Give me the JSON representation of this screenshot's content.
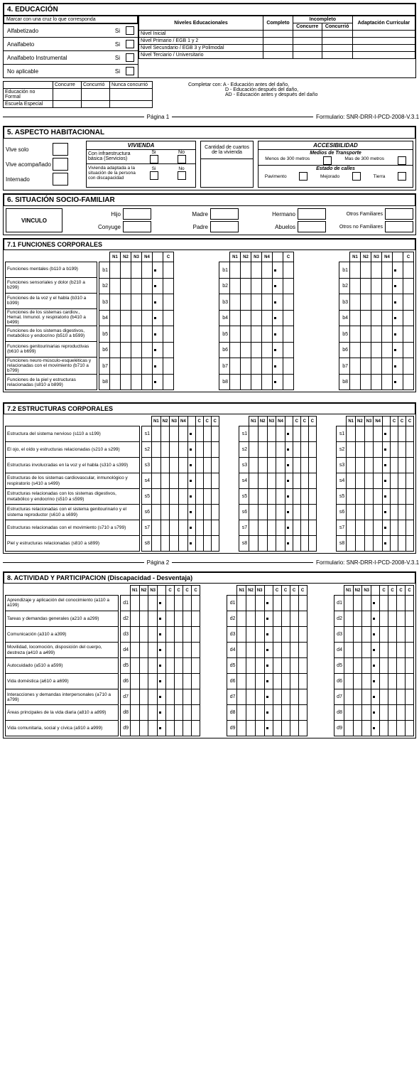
{
  "section4": {
    "title": "4. EDUCACIÓN",
    "marcar": "Marcar con una cruz lo que corresponda",
    "literacy": [
      {
        "label": "Alfabetizado",
        "opt": "Si"
      },
      {
        "label": "Analfabeto",
        "opt": "Si"
      },
      {
        "label": "Analfabeto Instrumental",
        "opt": "Si"
      },
      {
        "label": "No aplicable",
        "opt": "Si"
      }
    ],
    "niveles_title": "Niveles Educacionales",
    "completo": "Completo",
    "incompleto": "Incompleto",
    "concurre": "Concurre",
    "concurrio": "Concurrió",
    "adaptacion": "Adaptación Curricular",
    "niveles": [
      "Nivel Inicial",
      "Nivel Primario / EGB 1 y 2",
      "Nivel Secundario / EGB 3 y Polimodal",
      "Nivel Terciario / Universitario"
    ],
    "extra_rows": [
      "Educación no Formal",
      "Escuela Especial"
    ],
    "nunca": "Nunca concurrió",
    "completar": "Completar con: A - Educación antes del daño,",
    "completar2": "D - Educación después del daño,",
    "completar3": "AD - Educación  antes y después del daño"
  },
  "page1": {
    "pagina": "Página 1",
    "form": "Formulario: SNR-DRR-I-PCD-2008-V.3.1"
  },
  "section5": {
    "title": "5. ASPECTO HABITACIONAL",
    "vive_solo": "Vive solo",
    "vive_acomp": "Vive acompañado",
    "internado": "Internado",
    "vivienda": "VIVIENDA",
    "infra": "Con infraestructura básica (Servicios)",
    "adaptada": "Vivienda adaptada a la situación de la persona con discapacidad",
    "si": "Si",
    "no": "No",
    "cantidad": "Cantidad de cuartos de la vivienda",
    "accesibilidad": "ACCESIBILIDAD",
    "medios": "Medios de Transporte",
    "menos": "Menos de 300 metros",
    "mas": "Mas de 300 metros",
    "estado": "Estado de calles",
    "pavimento": "Pavimento",
    "mejorado": "Mejorado",
    "tierra": "Tierra"
  },
  "section6": {
    "title": "6. SITUACIÓN SOCIO-FAMILIAR",
    "vinculo": "VINCULO",
    "hijo": "Hijo",
    "conyuge": "Conyuge",
    "madre": "Madre",
    "padre": "Padre",
    "hermano": "Hermano",
    "abuelos": "Abuelos",
    "otros_fam": "Otros Familiares",
    "otros_no": "Otros no Familiares"
  },
  "section71": {
    "title": "7.1 FUNCIONES CORPORALES",
    "headers": [
      "N1",
      "N2",
      "N3",
      "N4",
      "",
      "C"
    ],
    "rows": [
      {
        "label": "Funciones mentales (b110 a b199)",
        "code": "b1"
      },
      {
        "label": "Funciones sensoriales y dolor (b210 a b299)",
        "code": "b2"
      },
      {
        "label": "Funciones de la voz y el habla (b310 a b399)",
        "code": "b3"
      },
      {
        "label": "Funciones de los sistemas cardiov., Hemat. Inmunol. y respiratorio (b410 a b499)",
        "code": "b4"
      },
      {
        "label": "Funciones de los sistemas digestivos, metabólico y endocrino (b510 a b599)",
        "code": "b5"
      },
      {
        "label": "Funciones genitourinarias reproductivas (b610 a b699)",
        "code": "b6"
      },
      {
        "label": "Funciones neuro-músculo-esqueléticas y relacionadas con el movimiento (b710 a b799)",
        "code": "b7"
      },
      {
        "label": "Funciones de la piel y estructuras relacionadas (s810 a b899)",
        "code": "b8"
      }
    ]
  },
  "section72": {
    "title": "7.2 ESTRUCTURAS CORPORALES",
    "headers": [
      "N1",
      "N2",
      "N3",
      "N4",
      "",
      "C",
      "C",
      "C"
    ],
    "rows": [
      {
        "label": "Estructura del sistema nervioso (s110 a s199)",
        "code": "s1"
      },
      {
        "label": "El ojo, el oído y estructuras relacionadas (s210 a s299)",
        "code": "s2"
      },
      {
        "label": "Estructuras involucradas en la voz y el habla (s310 a s399)",
        "code": "s3"
      },
      {
        "label": "Estructuras de los sistemas cardiovascular, inmunológico y respiratorio (s410 a s499)",
        "code": "s4"
      },
      {
        "label": "Estructuras relacionadas con los sistemas digestivos, metabólico y endocrino (s510 a s599)",
        "code": "s5"
      },
      {
        "label": "Estructuras relacionadas con el sistema genitourinario y el sistema reproductor (s610 a s699)",
        "code": "s6"
      },
      {
        "label": "Estructuras relacionadas con el movimiento (s710 a s799)",
        "code": "s7"
      },
      {
        "label": "Piel y estructuras relacionadas (s810 a s899)",
        "code": "s8"
      }
    ]
  },
  "page2": {
    "pagina": "Página 2",
    "form": "Formulario: SNR-DRR-I-PCD-2008-V.3.1"
  },
  "section8": {
    "title": "8. ACTIVIDAD Y PARTICIPACION (Discapacidad - Desventaja)",
    "headers": [
      "N1",
      "N2",
      "N3",
      "",
      "C",
      "C",
      "C",
      "C"
    ],
    "rows": [
      {
        "label": "Aprendizaje y aplicación del conocimiento (a110 a a199)",
        "code": "d1"
      },
      {
        "label": "Tareas y demandas generales (a210 a a299)",
        "code": "d2"
      },
      {
        "label": "Comunicación (a310 a a399)",
        "code": "d3"
      },
      {
        "label": "Movilidad, locomoción, disposición del cuerpo, destreza (a410 a a499)",
        "code": "d4"
      },
      {
        "label": "Autocuidado (a510 a a599)",
        "code": "d5"
      },
      {
        "label": "Vida doméstica (a610 a a699)",
        "code": "d6"
      },
      {
        "label": "Interacciones y demandas interpersonales (a710 a a799)",
        "code": "d7"
      },
      {
        "label": "Áreas principales de la vida diaria (a810 a a899)",
        "code": "d8"
      },
      {
        "label": "Vida comunitaria, social y cívica (a910 a a999)",
        "code": "d9"
      }
    ]
  }
}
